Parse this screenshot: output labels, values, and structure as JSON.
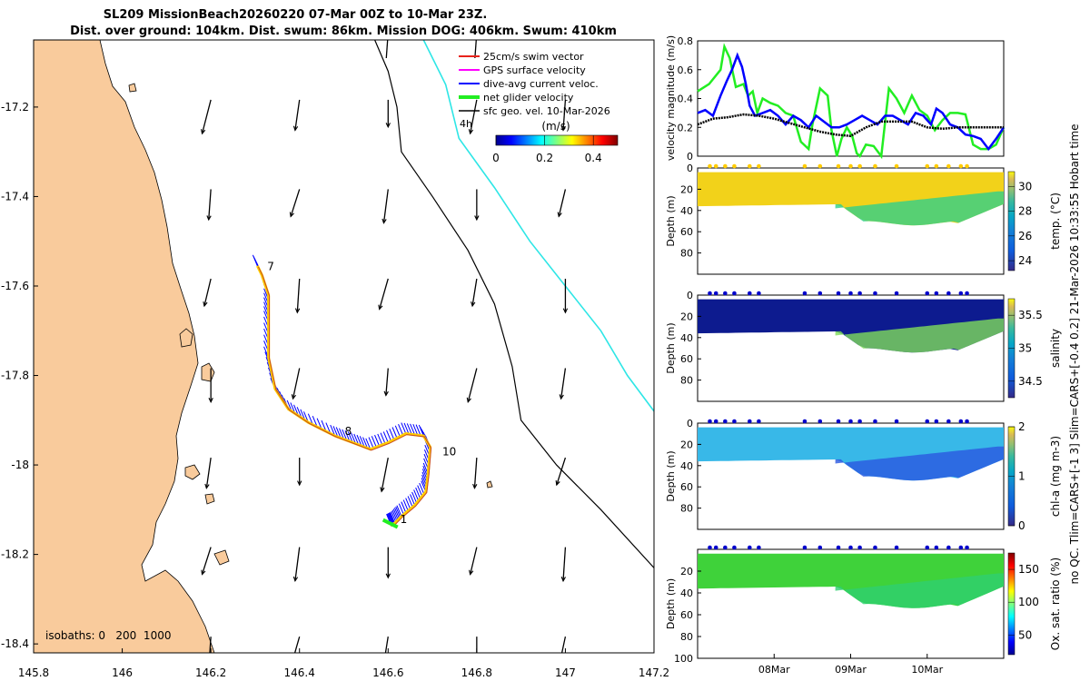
{
  "title_line1": "SL209 MissionBeach20260220 07-Mar 00Z to 10-Mar 23Z.",
  "title_line2": "Dist. over ground: 104km. Dist. swum: 86km. Mission DOG: 406km. Swum: 410km",
  "side_text": "no QC. Tlim=CARS+[-1 3] Slim=CARS+[-0.4 0.2] 21-Mar-2026 10:33:55 Hobart time",
  "colors": {
    "land": "#f9cb9c",
    "ocean": "#ffffff",
    "red": "#e8231b",
    "magenta": "#ff00ff",
    "blue": "#0000ff",
    "green": "#22ee22",
    "black": "#000000",
    "cyan": "#2ee6e6"
  },
  "chart_data": [
    {
      "type": "map",
      "xlim": [
        145.8,
        147.2
      ],
      "ylim": [
        -18.42,
        -17.05
      ],
      "x_ticks": [
        "145.8",
        "146",
        "146.2",
        "146.4",
        "146.6",
        "146.8",
        "147",
        "147.2"
      ],
      "y_ticks": [
        "-17.2",
        "-17.4",
        "-17.6",
        "-17.8",
        "-18",
        "-18.2",
        "-18.4"
      ],
      "legend": {
        "items": [
          "25cm/s swim vector",
          "GPS surface velocity",
          "dive-avg current veloc.",
          "net glider velocity",
          "sfc geo. vel. 10-Mar-2026"
        ],
        "tag": "4h"
      },
      "colorbar": {
        "label": "(m/s)",
        "ticks": [
          "0",
          "0.2",
          "0.4"
        ],
        "range": [
          0,
          0.5
        ]
      },
      "isobaths_label": "isobaths: 0   200  1000",
      "day_labels": [
        {
          "text": "7",
          "lon": 146.315,
          "lat": -17.556
        },
        {
          "text": "8",
          "lon": 146.49,
          "lat": -17.925
        },
        {
          "text": "10",
          "lon": 146.71,
          "lat": -17.97
        },
        {
          "text": "1",
          "lon": 146.615,
          "lat": -18.122
        }
      ],
      "track": [
        [
          146.305,
          -17.555
        ],
        [
          146.315,
          -17.575
        ],
        [
          146.33,
          -17.62
        ],
        [
          146.33,
          -17.68
        ],
        [
          146.33,
          -17.76
        ],
        [
          146.345,
          -17.83
        ],
        [
          146.375,
          -17.875
        ],
        [
          146.42,
          -17.905
        ],
        [
          146.48,
          -17.935
        ],
        [
          146.52,
          -17.95
        ],
        [
          146.56,
          -17.965
        ],
        [
          146.6,
          -17.95
        ],
        [
          146.64,
          -17.93
        ],
        [
          146.68,
          -17.935
        ],
        [
          146.695,
          -17.96
        ],
        [
          146.69,
          -18.02
        ],
        [
          146.685,
          -18.06
        ],
        [
          146.66,
          -18.09
        ],
        [
          146.63,
          -18.115
        ],
        [
          146.615,
          -18.13
        ],
        [
          146.605,
          -18.135
        ]
      ],
      "geo_vector_grid": {
        "lon": [
          146.2,
          146.4,
          146.6,
          146.8,
          147
        ],
        "lat": [
          -17.2,
          -17.4,
          -17.6,
          -17.8,
          -18,
          -18.2,
          -18.4
        ],
        "u": -0.02,
        "v": -0.14
      },
      "black_contour": [
        [
          146.57,
          -17.05
        ],
        [
          146.6,
          -17.12
        ],
        [
          146.62,
          -17.2
        ],
        [
          146.63,
          -17.3
        ],
        [
          146.7,
          -17.4
        ],
        [
          146.78,
          -17.52
        ],
        [
          146.84,
          -17.64
        ],
        [
          146.88,
          -17.78
        ],
        [
          146.9,
          -17.9
        ],
        [
          146.98,
          -18.0
        ],
        [
          147.08,
          -18.1
        ],
        [
          147.2,
          -18.23
        ]
      ],
      "cyan_contour": [
        [
          146.68,
          -17.05
        ],
        [
          146.73,
          -17.15
        ],
        [
          146.76,
          -17.27
        ],
        [
          146.84,
          -17.38
        ],
        [
          146.92,
          -17.5
        ],
        [
          147.0,
          -17.6
        ],
        [
          147.08,
          -17.7
        ],
        [
          147.14,
          -17.8
        ],
        [
          147.2,
          -17.88
        ]
      ]
    },
    {
      "type": "line",
      "ylabel": "velocity magnitude (m/s)",
      "ylim": [
        0,
        0.8
      ],
      "y_ticks": [
        "0",
        "0.2",
        "0.4",
        "0.6",
        "0.8"
      ],
      "xlim_days": [
        7.0,
        11.0
      ],
      "series": [
        {
          "name": "net glider velocity",
          "color": "green",
          "x": [
            7.0,
            7.15,
            7.3,
            7.35,
            7.42,
            7.5,
            7.6,
            7.66,
            7.72,
            7.78,
            7.85,
            7.95,
            8.05,
            8.15,
            8.25,
            8.35,
            8.45,
            8.5,
            8.6,
            8.7,
            8.75,
            8.82,
            8.88,
            8.95,
            9.02,
            9.08,
            9.12,
            9.2,
            9.3,
            9.4,
            9.5,
            9.6,
            9.7,
            9.8,
            9.9,
            10.0,
            10.1,
            10.2,
            10.3,
            10.4,
            10.5,
            10.6,
            10.7,
            10.8,
            10.9,
            11.0
          ],
          "y": [
            0.45,
            0.5,
            0.6,
            0.76,
            0.68,
            0.48,
            0.5,
            0.42,
            0.45,
            0.3,
            0.4,
            0.37,
            0.35,
            0.3,
            0.28,
            0.1,
            0.05,
            0.22,
            0.47,
            0.42,
            0.18,
            0.0,
            0.12,
            0.2,
            0.14,
            0.02,
            0.0,
            0.08,
            0.07,
            0.0,
            0.47,
            0.4,
            0.3,
            0.42,
            0.32,
            0.28,
            0.18,
            0.25,
            0.3,
            0.3,
            0.29,
            0.08,
            0.05,
            0.05,
            0.08,
            0.2
          ]
        },
        {
          "name": "dive-avg current veloc.",
          "color": "blue",
          "x": [
            7.0,
            7.1,
            7.2,
            7.3,
            7.38,
            7.45,
            7.52,
            7.58,
            7.63,
            7.68,
            7.75,
            7.85,
            7.95,
            8.05,
            8.15,
            8.25,
            8.35,
            8.45,
            8.55,
            8.65,
            8.75,
            8.85,
            8.95,
            9.05,
            9.15,
            9.25,
            9.35,
            9.45,
            9.55,
            9.65,
            9.75,
            9.85,
            9.95,
            10.05,
            10.12,
            10.2,
            10.3,
            10.4,
            10.5,
            10.6,
            10.7,
            10.8,
            10.9,
            11.0
          ],
          "y": [
            0.3,
            0.32,
            0.28,
            0.42,
            0.52,
            0.6,
            0.7,
            0.62,
            0.5,
            0.35,
            0.28,
            0.3,
            0.32,
            0.28,
            0.22,
            0.28,
            0.25,
            0.2,
            0.28,
            0.24,
            0.2,
            0.2,
            0.22,
            0.25,
            0.28,
            0.25,
            0.22,
            0.28,
            0.28,
            0.25,
            0.22,
            0.3,
            0.28,
            0.22,
            0.33,
            0.3,
            0.22,
            0.2,
            0.15,
            0.14,
            0.12,
            0.05,
            0.12,
            0.2
          ]
        },
        {
          "name": "sfc geo. vel.",
          "color": "black",
          "x": [
            7.0,
            7.2,
            7.4,
            7.6,
            7.8,
            8.0,
            8.2,
            8.4,
            8.6,
            8.8,
            9.0,
            9.2,
            9.4,
            9.6,
            9.8,
            10.0,
            10.2,
            10.4,
            10.6,
            10.8,
            11.0
          ],
          "y": [
            0.22,
            0.26,
            0.27,
            0.29,
            0.28,
            0.26,
            0.23,
            0.2,
            0.17,
            0.15,
            0.14,
            0.2,
            0.24,
            0.24,
            0.24,
            0.2,
            0.19,
            0.2,
            0.2,
            0.2,
            0.2
          ]
        }
      ]
    },
    {
      "type": "section",
      "variable": "temp. (°C)",
      "ylabel": "Depth (m)",
      "ylim": [
        0,
        100
      ],
      "y_ticks": [
        "0",
        "20",
        "40",
        "60",
        "80"
      ],
      "colorbar_ticks": [
        "30",
        "28",
        "26",
        "24"
      ],
      "clim": [
        23.2,
        31.2
      ],
      "dot_color": "gold",
      "surface_color": "#f2d21a",
      "deep_color": "#2fd08a"
    },
    {
      "type": "section",
      "variable": "salinity",
      "ylabel": "Depth (m)",
      "ylim": [
        0,
        100
      ],
      "y_ticks": [
        "0",
        "20",
        "40",
        "60",
        "80"
      ],
      "colorbar_ticks": [
        "35.5",
        "35",
        "34.5"
      ],
      "clim": [
        34.25,
        35.75
      ],
      "dot_color": "blue",
      "surface_color": "#0d1b8f",
      "deep_color": "#7fdc5a"
    },
    {
      "type": "section",
      "variable": "chl-a (mg m-3)",
      "ylabel": "Depth (m)",
      "ylim": [
        0,
        100
      ],
      "y_ticks": [
        "0",
        "20",
        "40",
        "60",
        "80"
      ],
      "colorbar_ticks": [
        "2",
        "1",
        "0"
      ],
      "clim": [
        0,
        2
      ],
      "dot_color": "blue",
      "surface_color": "#38b8e8",
      "deep_color": "#2a58e0"
    },
    {
      "type": "section",
      "variable": "Ox. sat. ratio (%)",
      "ylabel": "Depth (m)",
      "ylim": [
        0,
        100
      ],
      "y_ticks": [
        "20",
        "40",
        "60",
        "80",
        "100"
      ],
      "colorbar_ticks": [
        "150",
        "100",
        "50"
      ],
      "clim": [
        20,
        175
      ],
      "dot_color": "blue",
      "surface_color": "#3fd23a",
      "deep_color": "#2fd070",
      "x_ticks": [
        "08Mar",
        "09Mar",
        "10Mar"
      ]
    }
  ]
}
